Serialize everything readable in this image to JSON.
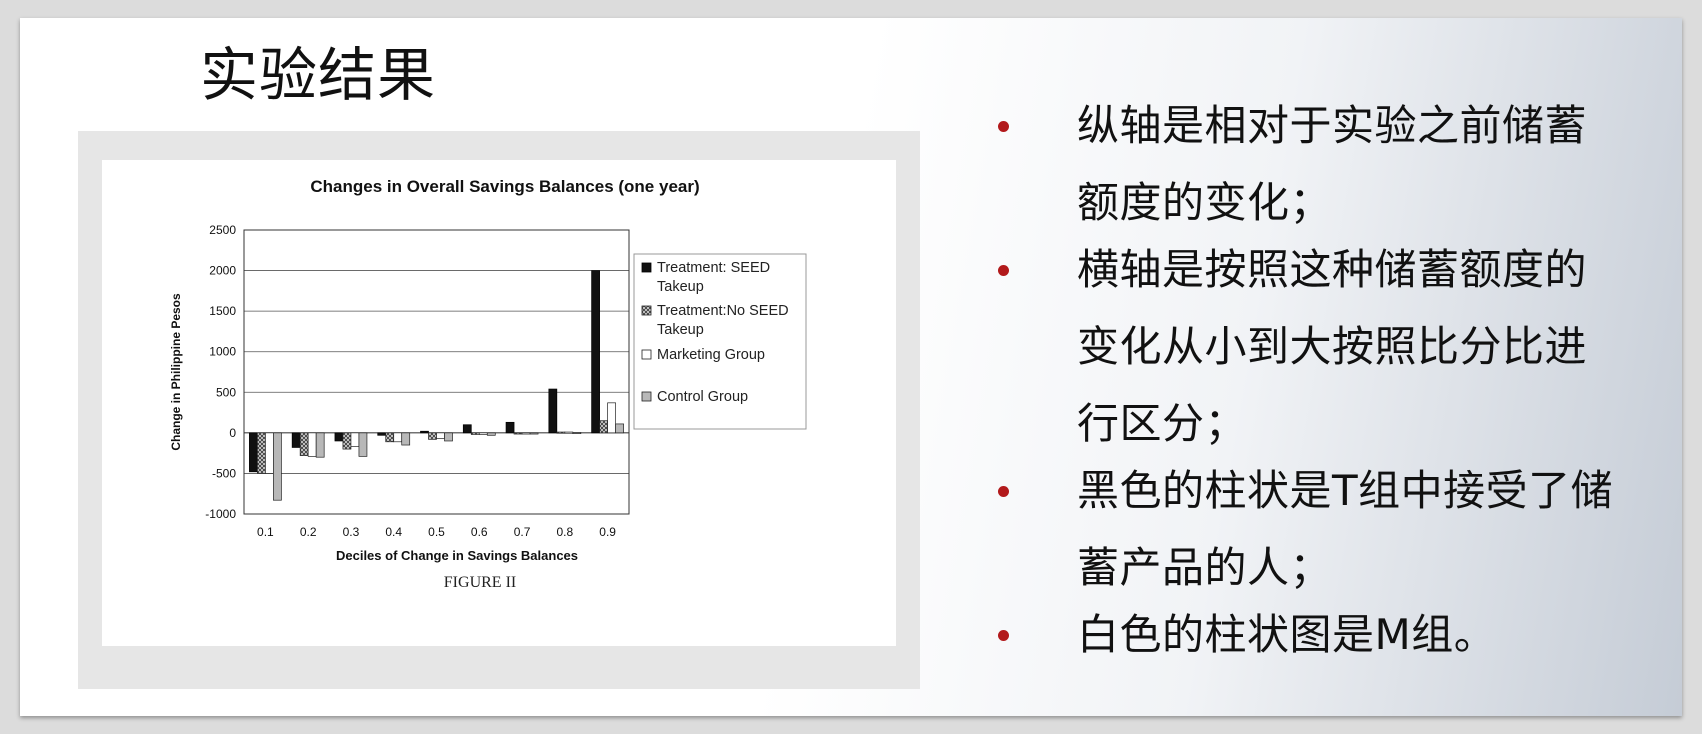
{
  "slide_title": "实验结果",
  "figure_caption": "FIGURE II",
  "bullets": [
    {
      "lines": [
        "纵轴是相对于实验之前储蓄",
        "额度的变化；"
      ]
    },
    {
      "lines": [
        "横轴是按照这种储蓄额度的",
        "变化从小到大按照比分比进",
        "行区分；"
      ]
    },
    {
      "lines": [
        "黑色的柱状是T组中接受了储",
        "蓄产品的人；"
      ]
    },
    {
      "lines": [
        "白色的柱状图是M组。"
      ]
    }
  ],
  "colors": {
    "bullet_dot": "#b2191b",
    "treatment_seed": "#111111",
    "treatment_no_seed": "#8c8c8c",
    "marketing": "#ffffff",
    "control": "#b8b8b8"
  },
  "chart_data": {
    "type": "bar",
    "title": "Changes in Overall Savings Balances (one year)",
    "xlabel": "Deciles of Change in Savings Balances",
    "ylabel": "Change in Philippine Pesos",
    "categories": [
      "0.1",
      "0.2",
      "0.3",
      "0.4",
      "0.5",
      "0.6",
      "0.7",
      "0.8",
      "0.9"
    ],
    "ylim": [
      -1000,
      2500
    ],
    "yticks": [
      -1000,
      -500,
      0,
      500,
      1000,
      1500,
      2000,
      2500
    ],
    "grid": true,
    "legend_position": "right",
    "series": [
      {
        "name": "Treatment: SEED Takeup",
        "legend_lines": [
          "Treatment: SEED",
          "Takeup"
        ],
        "style": "black",
        "values": [
          -480,
          -180,
          -100,
          -30,
          20,
          100,
          130,
          540,
          2000
        ]
      },
      {
        "name": "Treatment:No SEED Takeup",
        "legend_lines": [
          "Treatment:No SEED",
          "Takeup"
        ],
        "style": "hatched",
        "values": [
          -500,
          -280,
          -200,
          -110,
          -80,
          -20,
          0,
          10,
          150
        ]
      },
      {
        "name": "Marketing Group",
        "legend_lines": [
          "Marketing Group"
        ],
        "style": "white",
        "values": [
          -500,
          -290,
          -170,
          -110,
          -70,
          -20,
          0,
          10,
          370
        ]
      },
      {
        "name": "Control Group",
        "legend_lines": [
          "Control Group"
        ],
        "style": "gray",
        "values": [
          -830,
          -300,
          -290,
          -150,
          -100,
          -30,
          0,
          5,
          110
        ]
      }
    ]
  }
}
